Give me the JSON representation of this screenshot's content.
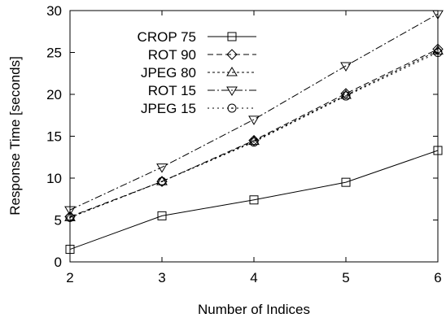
{
  "chart_data": {
    "type": "line",
    "xlabel": "Number of Indices",
    "ylabel": "Response Time [seconds]",
    "xlim": [
      2,
      6
    ],
    "ylim": [
      0,
      30
    ],
    "xticks": [
      "2",
      "3",
      "4",
      "5",
      "6"
    ],
    "yticks": [
      "0",
      "5",
      "10",
      "15",
      "20",
      "25",
      "30"
    ],
    "grid": false,
    "legend_position": "top-left",
    "x": [
      2,
      3,
      4,
      5,
      6
    ],
    "series": [
      {
        "name": "CROP 75",
        "marker": "square",
        "dash": "solid",
        "values": [
          1.5,
          5.5,
          7.4,
          9.5,
          13.3
        ]
      },
      {
        "name": "ROT 90",
        "marker": "diamond",
        "dash": "dashed",
        "values": [
          5.4,
          9.6,
          14.5,
          20.1,
          25.4
        ]
      },
      {
        "name": "JPEG 80",
        "marker": "triangle-up",
        "dash": "dotted",
        "values": [
          5.3,
          9.6,
          14.4,
          19.9,
          25.2
        ]
      },
      {
        "name": "ROT 15",
        "marker": "triangle-down",
        "dash": "dashdot",
        "values": [
          6.2,
          11.3,
          17.0,
          23.4,
          29.6
        ]
      },
      {
        "name": "JPEG 15",
        "marker": "circle",
        "dash": "longdot",
        "values": [
          5.3,
          9.6,
          14.3,
          19.8,
          25.0
        ]
      }
    ]
  }
}
